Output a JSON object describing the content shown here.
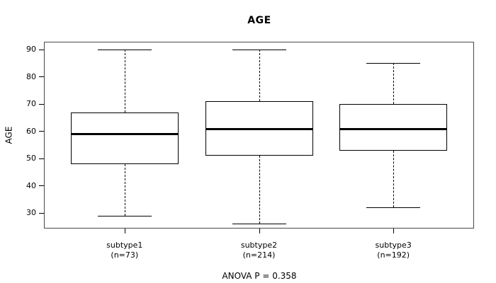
{
  "chart_data": {
    "type": "boxplot",
    "title": "AGE",
    "ylabel": "AGE",
    "annotation": "ANOVA P = 0.358",
    "yticks": [
      30,
      40,
      50,
      60,
      70,
      80,
      90
    ],
    "ylim": [
      24.3,
      92.9
    ],
    "grid": false,
    "line_color": "#000000",
    "background_color": "#ffffff",
    "groups": [
      {
        "label": "subtype1",
        "sublabel": "(n=73)",
        "whisker_low": 29,
        "q1": 48,
        "median": 59,
        "q3": 67,
        "whisker_high": 90
      },
      {
        "label": "subtype2",
        "sublabel": "(n=214)",
        "whisker_low": 26,
        "q1": 51,
        "median": 61,
        "q3": 71,
        "whisker_high": 90
      },
      {
        "label": "subtype3",
        "sublabel": "(n=192)",
        "whisker_low": 32,
        "q1": 53,
        "median": 61,
        "q3": 70,
        "whisker_high": 85
      }
    ]
  }
}
